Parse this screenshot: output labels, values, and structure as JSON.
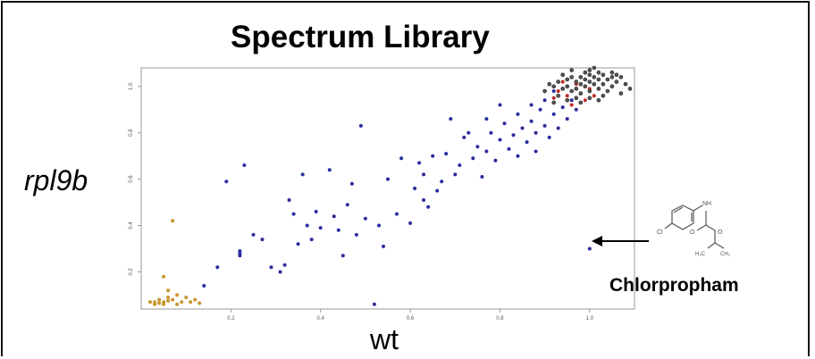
{
  "chart_data": {
    "type": "scatter",
    "title": "Spectrum Library",
    "xlabel": "wt",
    "ylabel": "rpl9b",
    "xlim": [
      0.0,
      1.1
    ],
    "ylim": [
      0.04,
      1.08
    ],
    "x_ticks": [
      "0.2",
      "0.4",
      "0.6",
      "0.8",
      "1.0"
    ],
    "y_ticks": [
      "0.2",
      "0.4",
      "0.6",
      "0.8",
      "1.0"
    ],
    "grid": false,
    "annotation": {
      "text": "Chlorpropham",
      "x": 1.0,
      "y": 0.3
    },
    "series": [
      {
        "color": "#c8962e",
        "points": [
          [
            0.02,
            0.07
          ],
          [
            0.03,
            0.06
          ],
          [
            0.04,
            0.065
          ],
          [
            0.05,
            0.07
          ],
          [
            0.06,
            0.075
          ],
          [
            0.04,
            0.08
          ],
          [
            0.06,
            0.09
          ],
          [
            0.07,
            0.08
          ],
          [
            0.08,
            0.1
          ],
          [
            0.05,
            0.18
          ],
          [
            0.06,
            0.12
          ],
          [
            0.1,
            0.09
          ],
          [
            0.12,
            0.08
          ],
          [
            0.03,
            0.07
          ],
          [
            0.07,
            0.42
          ],
          [
            0.09,
            0.07
          ],
          [
            0.05,
            0.06
          ],
          [
            0.11,
            0.07
          ],
          [
            0.13,
            0.065
          ],
          [
            0.08,
            0.06
          ]
        ]
      },
      {
        "color": "#2b2b9e",
        "points": [
          [
            0.14,
            0.14
          ],
          [
            0.17,
            0.22
          ],
          [
            0.19,
            0.59
          ],
          [
            0.22,
            0.27
          ],
          [
            0.22,
            0.28
          ],
          [
            0.22,
            0.29
          ],
          [
            0.23,
            0.66
          ],
          [
            0.25,
            0.36
          ],
          [
            0.27,
            0.34
          ],
          [
            0.29,
            0.22
          ],
          [
            0.31,
            0.2
          ],
          [
            0.32,
            0.23
          ],
          [
            0.33,
            0.51
          ],
          [
            0.34,
            0.45
          ],
          [
            0.35,
            0.32
          ],
          [
            0.36,
            0.62
          ],
          [
            0.37,
            0.4
          ],
          [
            0.38,
            0.34
          ],
          [
            0.39,
            0.46
          ],
          [
            0.4,
            0.39
          ],
          [
            0.42,
            0.64
          ],
          [
            0.43,
            0.44
          ],
          [
            0.44,
            0.38
          ],
          [
            0.45,
            0.27
          ],
          [
            0.46,
            0.49
          ],
          [
            0.47,
            0.58
          ],
          [
            0.48,
            0.36
          ],
          [
            0.49,
            0.83
          ],
          [
            0.5,
            0.43
          ],
          [
            0.52,
            0.06
          ],
          [
            0.53,
            0.4
          ],
          [
            0.54,
            0.31
          ],
          [
            0.55,
            0.6
          ],
          [
            0.57,
            0.45
          ],
          [
            0.58,
            0.69
          ],
          [
            0.6,
            0.41
          ],
          [
            0.61,
            0.56
          ],
          [
            0.62,
            0.67
          ],
          [
            0.63,
            0.51
          ],
          [
            0.63,
            0.62
          ],
          [
            0.64,
            0.48
          ],
          [
            0.65,
            0.7
          ],
          [
            0.66,
            0.55
          ],
          [
            0.67,
            0.59
          ],
          [
            0.68,
            0.71
          ],
          [
            0.69,
            0.86
          ],
          [
            0.7,
            0.62
          ],
          [
            0.71,
            0.66
          ],
          [
            0.72,
            0.78
          ],
          [
            0.73,
            0.8
          ],
          [
            0.74,
            0.69
          ],
          [
            0.75,
            0.74
          ],
          [
            0.76,
            0.61
          ],
          [
            0.77,
            0.86
          ],
          [
            0.77,
            0.72
          ],
          [
            0.78,
            0.8
          ],
          [
            0.79,
            0.68
          ],
          [
            0.8,
            0.92
          ],
          [
            0.8,
            0.77
          ],
          [
            0.81,
            0.84
          ],
          [
            0.82,
            0.73
          ],
          [
            0.83,
            0.79
          ],
          [
            0.84,
            0.88
          ],
          [
            0.84,
            0.7
          ],
          [
            0.85,
            0.82
          ],
          [
            0.86,
            0.76
          ],
          [
            0.87,
            0.92
          ],
          [
            0.87,
            0.85
          ],
          [
            0.88,
            0.8
          ],
          [
            0.88,
            0.72
          ],
          [
            0.89,
            0.9
          ],
          [
            0.9,
            0.83
          ],
          [
            0.9,
            0.94
          ],
          [
            0.91,
            0.78
          ],
          [
            0.92,
            0.88
          ],
          [
            0.92,
            0.98
          ],
          [
            0.93,
            0.82
          ],
          [
            0.94,
            0.91
          ],
          [
            0.95,
            0.86
          ],
          [
            0.96,
            0.94
          ],
          [
            0.97,
            0.9
          ],
          [
            1.0,
            0.3
          ]
        ]
      },
      {
        "color": "#bb2a2a",
        "points": [
          [
            0.93,
            0.98
          ],
          [
            0.95,
            0.96
          ],
          [
            0.97,
            1.01
          ],
          [
            0.99,
            0.94
          ],
          [
            1.0,
            0.99
          ],
          [
            0.96,
            0.92
          ],
          [
            0.98,
            0.97
          ],
          [
            0.94,
            1.02
          ],
          [
            1.01,
            0.96
          ],
          [
            0.92,
            0.95
          ]
        ]
      },
      {
        "color": "#333333",
        "points": [
          [
            0.92,
            1.0
          ],
          [
            0.93,
            1.02
          ],
          [
            0.94,
            0.99
          ],
          [
            0.95,
            1.03
          ],
          [
            0.95,
            1.0
          ],
          [
            0.96,
            1.04
          ],
          [
            0.96,
            0.98
          ],
          [
            0.97,
            1.02
          ],
          [
            0.97,
            0.99
          ],
          [
            0.98,
            1.04
          ],
          [
            0.98,
            1.01
          ],
          [
            0.98,
            0.97
          ],
          [
            0.99,
            1.03
          ],
          [
            0.99,
            1.0
          ],
          [
            1.0,
            1.05
          ],
          [
            1.0,
            1.02
          ],
          [
            1.0,
            0.98
          ],
          [
            1.01,
            1.04
          ],
          [
            1.01,
            1.01
          ],
          [
            1.02,
            1.03
          ],
          [
            1.02,
            0.99
          ],
          [
            1.03,
            1.05
          ],
          [
            1.03,
            1.01
          ],
          [
            1.04,
            1.03
          ],
          [
            1.04,
            0.98
          ],
          [
            1.05,
            1.06
          ],
          [
            1.05,
            1.0
          ],
          [
            1.06,
            1.02
          ],
          [
            1.07,
            0.97
          ],
          [
            1.08,
            1.01
          ],
          [
            0.9,
            0.98
          ],
          [
            0.91,
            1.01
          ],
          [
            0.94,
            1.05
          ],
          [
            0.96,
            1.07
          ],
          [
            1.0,
            1.07
          ],
          [
            1.02,
            1.06
          ],
          [
            1.06,
            1.05
          ],
          [
            0.97,
            0.95
          ],
          [
            1.0,
            0.95
          ],
          [
            1.03,
            0.96
          ],
          [
            0.93,
            0.96
          ],
          [
            0.99,
            1.06
          ],
          [
            1.01,
            1.08
          ],
          [
            1.05,
            1.04
          ],
          [
            1.07,
            1.04
          ],
          [
            0.95,
            0.94
          ],
          [
            0.98,
            0.93
          ],
          [
            1.02,
            0.94
          ],
          [
            0.92,
            0.93
          ],
          [
            1.09,
            0.99
          ]
        ]
      }
    ]
  }
}
